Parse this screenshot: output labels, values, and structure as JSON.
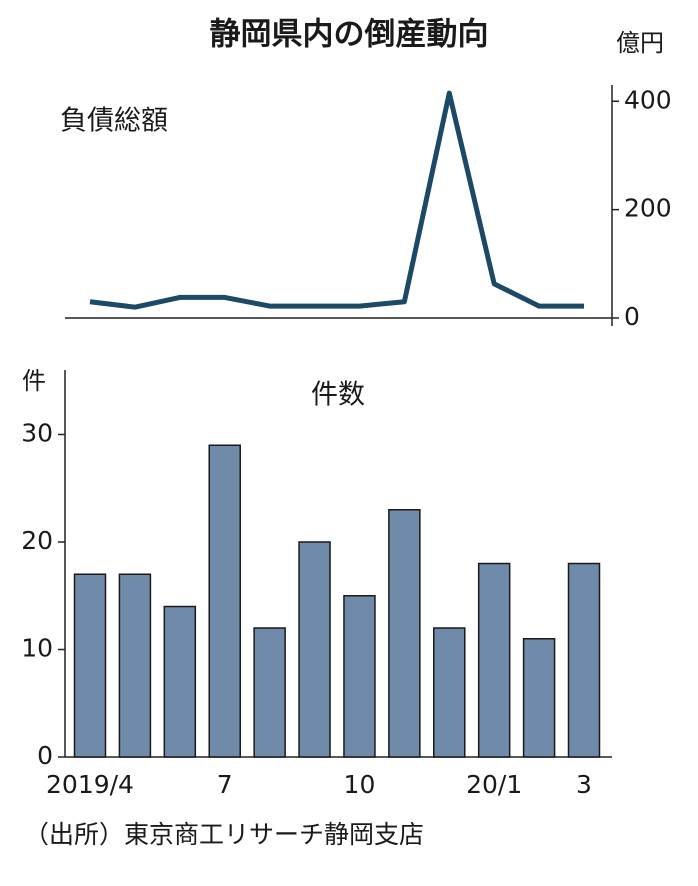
{
  "title": "静岡県内の倒産動向",
  "source": "（出所）東京商工リサーチ静岡支店",
  "chart_data": [
    {
      "type": "line",
      "title": "負債総額",
      "y_unit": "億円",
      "color": "#1c4a66",
      "values": [
        30,
        20,
        38,
        38,
        22,
        22,
        22,
        30,
        415,
        63,
        22,
        22
      ],
      "ylim": [
        0,
        430
      ],
      "yticks": [
        0,
        200,
        400
      ],
      "axis_side": "right"
    },
    {
      "type": "bar",
      "title": "件数",
      "y_unit": "件",
      "color": "#6f8ba9",
      "categories": [
        "2019/4",
        null,
        null,
        "7",
        null,
        null,
        "10",
        null,
        null,
        "20/1",
        null,
        "3"
      ],
      "values": [
        17,
        17,
        14,
        29,
        12,
        20,
        15,
        23,
        12,
        18,
        11,
        18
      ],
      "ylim": [
        0,
        36
      ],
      "yticks": [
        0,
        10,
        20,
        30
      ],
      "axis_side": "left"
    }
  ]
}
